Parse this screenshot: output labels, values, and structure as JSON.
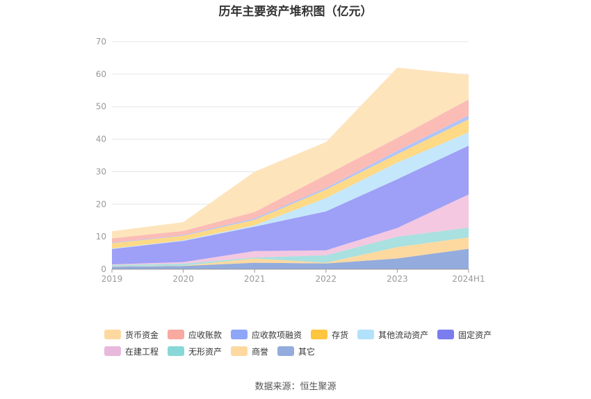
{
  "chart_data": {
    "type": "area",
    "stacked": true,
    "title": "历年主要资产堆积图（亿元）",
    "categories": [
      "2019",
      "2020",
      "2021",
      "2022",
      "2023",
      "2024H1"
    ],
    "ylim": [
      0,
      70
    ],
    "yticks": [
      0,
      10,
      20,
      30,
      40,
      50,
      60,
      70
    ],
    "grid": true,
    "legend_position": "bottom",
    "series": [
      {
        "name": "其它",
        "color": "#93acdd",
        "values": [
          0.8,
          1.0,
          2.0,
          1.8,
          3.3,
          6.3
        ]
      },
      {
        "name": "商誉",
        "color": "#fdd9a0",
        "values": [
          0.1,
          0.1,
          1.3,
          0.2,
          3.5,
          3.5
        ]
      },
      {
        "name": "无形资产",
        "color": "#a9e0e0",
        "values": [
          0.4,
          0.6,
          0.3,
          2.3,
          3.2,
          3.0
        ]
      },
      {
        "name": "在建工程",
        "color": "#f3c8e0",
        "values": [
          0.2,
          0.5,
          2.0,
          1.5,
          2.7,
          10.2
        ]
      },
      {
        "name": "固定资产",
        "color": "#9e9ff6",
        "values": [
          4.7,
          6.5,
          7.5,
          12.0,
          15.0,
          15.0
        ]
      },
      {
        "name": "其他流动资产",
        "color": "#c4e7fb",
        "values": [
          0.2,
          0.2,
          0.4,
          4.1,
          5.1,
          4.1
        ]
      },
      {
        "name": "存货",
        "color": "#fed986",
        "values": [
          1.6,
          1.4,
          1.7,
          2.6,
          2.6,
          4.0
        ]
      },
      {
        "name": "应收款项融资",
        "color": "#b0c4fa",
        "values": [
          0.2,
          0.2,
          0.4,
          0.5,
          1.0,
          1.2
        ]
      },
      {
        "name": "应收账款",
        "color": "#fbbcb6",
        "values": [
          1.3,
          1.3,
          2.0,
          4.0,
          4.0,
          4.9
        ]
      },
      {
        "name": "货币资金",
        "color": "#fde4bb",
        "values": [
          2.2,
          2.7,
          12.4,
          10.1,
          21.6,
          7.6
        ]
      }
    ]
  },
  "legend": {
    "row1": [
      {
        "label": "货币资金",
        "color": "#fdd9a0"
      },
      {
        "label": "应收账款",
        "color": "#f8a9a0"
      },
      {
        "label": "应收款项融资",
        "color": "#8ea6f8"
      },
      {
        "label": "存货",
        "color": "#fec53f"
      },
      {
        "label": "其他流动资产",
        "color": "#b3e0fa"
      },
      {
        "label": "固定资产",
        "color": "#7b7cee"
      }
    ],
    "row2": [
      {
        "label": "在建工程",
        "color": "#e8b9dc"
      },
      {
        "label": "无形资产",
        "color": "#88d8d8"
      },
      {
        "label": "商誉",
        "color": "#fdd9a0"
      },
      {
        "label": "其它",
        "color": "#93acdd"
      }
    ]
  },
  "source": "数据来源：恒生聚源"
}
